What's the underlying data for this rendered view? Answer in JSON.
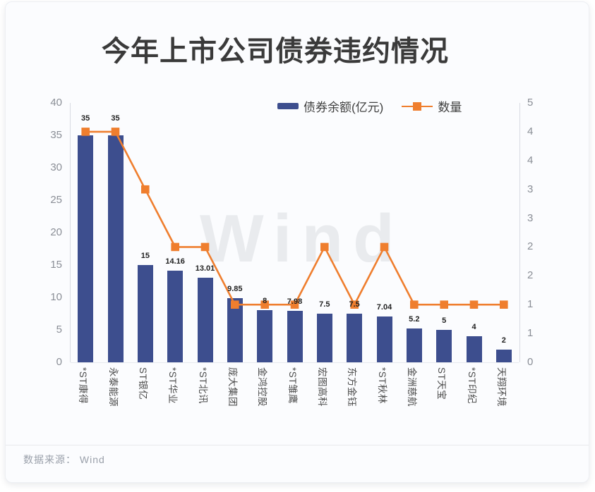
{
  "title": "今年上市公司债券违约情况",
  "watermark": "Wind",
  "footer": {
    "text": "数据来源： Wind"
  },
  "legend": {
    "items": [
      {
        "label": "债券余额(亿元)",
        "type": "bar",
        "color": "#3d4e8e"
      },
      {
        "label": "数量",
        "type": "line",
        "color": "#ef7e2e"
      }
    ]
  },
  "colors": {
    "bar": "#3d4e8e",
    "line": "#ef7e2e",
    "axis_line": "#d9dce2",
    "tick_text": "#8a8e96",
    "xlabel_text": "#4c4c4c",
    "value_label": "#1f1f1f",
    "title_text": "#3a3a3a",
    "watermark_text": "#e9ebee"
  },
  "chart_data": {
    "type": "bar",
    "subtype": "bar+line combo, dual y-axis",
    "title": "今年上市公司债券违约情况",
    "categories": [
      "*ST康得",
      "永泰能源",
      "ST银亿",
      "*ST华业",
      "*ST北讯",
      "庞大集团",
      "金鸿控股",
      "*ST雏鹰",
      "宏图高科",
      "东方金钰",
      "*ST秋林",
      "金洲慈航",
      "ST天宝",
      "*ST印纪",
      "天翔环境"
    ],
    "series": [
      {
        "name": "债券余额(亿元)",
        "type": "bar",
        "y_axis": "left",
        "color": "#3d4e8e",
        "values": [
          35,
          35,
          15,
          14.16,
          13.01,
          9.85,
          8,
          7.98,
          7.5,
          7.5,
          7.04,
          5.2,
          5,
          4,
          2
        ],
        "labels": [
          "35",
          "35",
          "15",
          "14.16",
          "13.01",
          "9.85",
          "8",
          "7.98",
          "7.5",
          "7.5",
          "7.04",
          "5.2",
          "5",
          "4",
          "2"
        ]
      },
      {
        "name": "数量",
        "type": "line",
        "y_axis": "right",
        "color": "#ef7e2e",
        "marker": "square",
        "values": [
          4,
          4,
          3,
          2,
          2,
          1,
          1,
          1,
          2,
          1,
          2,
          1,
          1,
          1,
          1
        ]
      }
    ],
    "left_axis": {
      "range": [
        0,
        40
      ],
      "tick_labels": [
        "40",
        "35",
        "30",
        "25",
        "20",
        "15",
        "10",
        "5",
        "0"
      ]
    },
    "right_axis": {
      "range": [
        0,
        4.5
      ],
      "tick_step": 0.5,
      "tick_labels_top_to_bottom": [
        "5",
        "4",
        "4",
        "3",
        "3",
        "2",
        "2",
        "1",
        "1",
        "0"
      ]
    },
    "grid": false,
    "legend_position": "top-center",
    "xlabel_rotation": "vertical (rotated 90° clockwise)",
    "source": "数据来源： Wind"
  }
}
